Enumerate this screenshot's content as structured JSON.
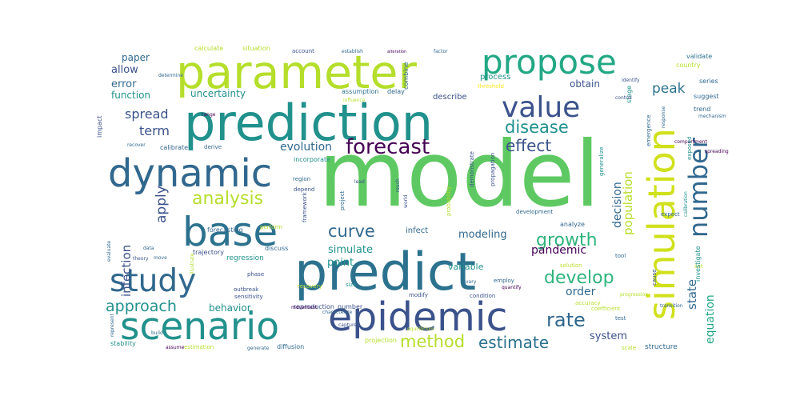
{
  "words": [
    {
      "text": "model",
      "color": "#5ec962"
    },
    {
      "text": "predict",
      "color": "#2c728e"
    },
    {
      "text": "prediction",
      "color": "#21918c"
    },
    {
      "text": "parameter",
      "color": "#b5de2b"
    },
    {
      "text": "simulation",
      "color": "#d0e11c"
    },
    {
      "text": "epidemic",
      "color": "#3b528b"
    },
    {
      "text": "scenario",
      "color": "#21918c"
    },
    {
      "text": "dynamic",
      "color": "#31688e"
    },
    {
      "text": "propose",
      "color": "#22a884"
    },
    {
      "text": "base",
      "color": "#2c728e"
    },
    {
      "text": "study",
      "color": "#31688e"
    },
    {
      "text": "value",
      "color": "#3b528b"
    },
    {
      "text": "number",
      "color": "#31688e"
    },
    {
      "text": "forecast",
      "color": "#440154"
    },
    {
      "text": "analysis",
      "color": "#b5de2b"
    },
    {
      "text": "disease",
      "color": "#21918c"
    },
    {
      "text": "growth",
      "color": "#2fb47c"
    },
    {
      "text": "develop",
      "color": "#2fb47c"
    },
    {
      "text": "curve",
      "color": "#31688e"
    },
    {
      "text": "approach",
      "color": "#21918c"
    },
    {
      "text": "method",
      "color": "#b5de2b"
    },
    {
      "text": "estimate",
      "color": "#2c728e"
    },
    {
      "text": "rate",
      "color": "#31688e"
    },
    {
      "text": "effect",
      "color": "#3b528b"
    },
    {
      "text": "apply",
      "color": "#3b528b"
    },
    {
      "text": "spread",
      "color": "#3b528b"
    },
    {
      "text": "term",
      "color": "#3b528b"
    },
    {
      "text": "peak",
      "color": "#2c728e"
    },
    {
      "text": "population",
      "color": "#b5de2b"
    },
    {
      "text": "evolution",
      "color": "#31688e"
    },
    {
      "text": "infection",
      "color": "#3b528b"
    },
    {
      "text": "modeling",
      "color": "#31688e"
    },
    {
      "text": "simulate",
      "color": "#21918c"
    },
    {
      "text": "point",
      "color": "#21918c"
    },
    {
      "text": "pandemic",
      "color": "#440154"
    },
    {
      "text": "order",
      "color": "#31688e"
    },
    {
      "text": "state",
      "color": "#31688e"
    },
    {
      "text": "equation",
      "color": "#22a884"
    },
    {
      "text": "system",
      "color": "#3b528b"
    },
    {
      "text": "obtain",
      "color": "#3b528b"
    },
    {
      "text": "decision",
      "color": "#31688e"
    },
    {
      "text": "uncertainty",
      "color": "#21918c"
    },
    {
      "text": "error",
      "color": "#31688e"
    },
    {
      "text": "function",
      "color": "#21918c"
    },
    {
      "text": "allow",
      "color": "#3b528b"
    },
    {
      "text": "paper",
      "color": "#31688e"
    },
    {
      "text": "behavior",
      "color": "#21918c"
    },
    {
      "text": "variable",
      "color": "#21918c"
    },
    {
      "text": "infect",
      "color": "#31688e"
    },
    {
      "text": "process",
      "color": "#21918c"
    },
    {
      "text": "describe",
      "color": "#3b528b"
    },
    {
      "text": "calculate",
      "color": "#b5de2b"
    },
    {
      "text": "situation",
      "color": "#b5de2b"
    },
    {
      "text": "account",
      "color": "#3b528b"
    },
    {
      "text": "establish",
      "color": "#31688e"
    },
    {
      "text": "alteration",
      "color": "#440154"
    },
    {
      "text": "factor",
      "color": "#31688e"
    },
    {
      "text": "validate",
      "color": "#2c728e"
    },
    {
      "text": "country",
      "color": "#b5de2b"
    },
    {
      "text": "threshold",
      "color": "#fde725"
    },
    {
      "text": "assumption",
      "color": "#2c728e"
    },
    {
      "text": "delay",
      "color": "#31688e"
    },
    {
      "text": "combine",
      "color": "#31688e"
    },
    {
      "text": "influence",
      "color": "#b5de2b"
    },
    {
      "text": "incorporate",
      "color": "#21918c"
    },
    {
      "text": "derive",
      "color": "#31688e"
    },
    {
      "text": "calibrate",
      "color": "#31688e"
    },
    {
      "text": "region",
      "color": "#31688e"
    },
    {
      "text": "depend",
      "color": "#3b528b"
    },
    {
      "text": "lead",
      "color": "#3b528b"
    },
    {
      "text": "reach",
      "color": "#3b528b"
    },
    {
      "text": "forecasting",
      "color": "#31688e"
    },
    {
      "text": "perform",
      "color": "#b5de2b"
    },
    {
      "text": "framework",
      "color": "#3b528b"
    },
    {
      "text": "trajectory",
      "color": "#3b528b"
    },
    {
      "text": "discuss",
      "color": "#31688e"
    },
    {
      "text": "regression",
      "color": "#21918c"
    },
    {
      "text": "phase",
      "color": "#3b528b"
    },
    {
      "text": "size",
      "color": "#21918c"
    },
    {
      "text": "outbreak",
      "color": "#3b528b"
    },
    {
      "text": "sensitivity",
      "color": "#3b528b"
    },
    {
      "text": "reproduction_number",
      "color": "#3b528b"
    },
    {
      "text": "modify",
      "color": "#3b528b"
    },
    {
      "text": "condition",
      "color": "#3b528b"
    },
    {
      "text": "accuracy",
      "color": "#b5de2b"
    },
    {
      "text": "coefficient",
      "color": "#b5de2b"
    },
    {
      "text": "test",
      "color": "#31688e"
    },
    {
      "text": "capture",
      "color": "#3b528b"
    },
    {
      "text": "equilibrium",
      "color": "#b5de2b"
    },
    {
      "text": "projection",
      "color": "#b5de2b"
    },
    {
      "text": "diffusion",
      "color": "#31688e"
    },
    {
      "text": "generate",
      "color": "#31688e"
    },
    {
      "text": "estimation",
      "color": "#b5de2b"
    },
    {
      "text": "structure",
      "color": "#31688e"
    },
    {
      "text": "scale",
      "color": "#b5de2b"
    },
    {
      "text": "stage",
      "color": "#21918c"
    },
    {
      "text": "series",
      "color": "#31688e"
    },
    {
      "text": "suggest",
      "color": "#31688e"
    },
    {
      "text": "trend",
      "color": "#31688e"
    },
    {
      "text": "control",
      "color": "#3b528b"
    },
    {
      "text": "identify",
      "color": "#3b528b"
    },
    {
      "text": "expect",
      "color": "#31688e"
    },
    {
      "text": "solution",
      "color": "#b5de2b"
    },
    {
      "text": "tool",
      "color": "#31688e"
    },
    {
      "text": "set",
      "color": "#b5de2b"
    },
    {
      "text": "investigate",
      "color": "#21918c"
    },
    {
      "text": "cause",
      "color": "#3b528b"
    },
    {
      "text": "analyze",
      "color": "#31688e"
    },
    {
      "text": "development",
      "color": "#31688e"
    },
    {
      "text": "propagation",
      "color": "#3b528b"
    },
    {
      "text": "demonstrate",
      "color": "#3b528b"
    },
    {
      "text": "probability",
      "color": "#b5de2b"
    },
    {
      "text": "project",
      "color": "#31688e"
    },
    {
      "text": "world",
      "color": "#3b528b"
    },
    {
      "text": "employ",
      "color": "#31688e"
    },
    {
      "text": "quantify",
      "color": "#440154"
    },
    {
      "text": "vary",
      "color": "#31688e"
    },
    {
      "text": "impact",
      "color": "#3b528b"
    },
    {
      "text": "recover",
      "color": "#31688e"
    },
    {
      "text": "evaluate",
      "color": "#31688e"
    },
    {
      "text": "data",
      "color": "#31688e"
    },
    {
      "text": "theory",
      "color": "#3b528b"
    },
    {
      "text": "illustrate",
      "color": "#b5de2b"
    },
    {
      "text": "represent",
      "color": "#31688e"
    },
    {
      "text": "stability",
      "color": "#21918c"
    },
    {
      "text": "build",
      "color": "#31688e"
    },
    {
      "text": "determine",
      "color": "#31688e"
    },
    {
      "text": "range",
      "color": "#440154"
    },
    {
      "text": "progression",
      "color": "#b5de2b"
    },
    {
      "text": "transition",
      "color": "#31688e"
    },
    {
      "text": "compartment",
      "color": "#440154"
    },
    {
      "text": "spreading",
      "color": "#440154"
    },
    {
      "text": "calibration",
      "color": "#21918c"
    },
    {
      "text": "generalize",
      "color": "#21918c"
    },
    {
      "text": "mechanism",
      "color": "#31688e"
    },
    {
      "text": "response",
      "color": "#31688e"
    },
    {
      "text": "emergence",
      "color": "#31688e"
    },
    {
      "text": "exposed",
      "color": "#21918c"
    },
    {
      "text": "recovery",
      "color": "#b5de2b"
    },
    {
      "text": "characterize",
      "color": "#31688e"
    },
    {
      "text": "movement",
      "color": "#440154"
    },
    {
      "text": "assume",
      "color": "#440154"
    },
    {
      "text": "move",
      "color": "#31688e"
    },
    {
      "text": "compare",
      "color": "#440154"
    }
  ]
}
